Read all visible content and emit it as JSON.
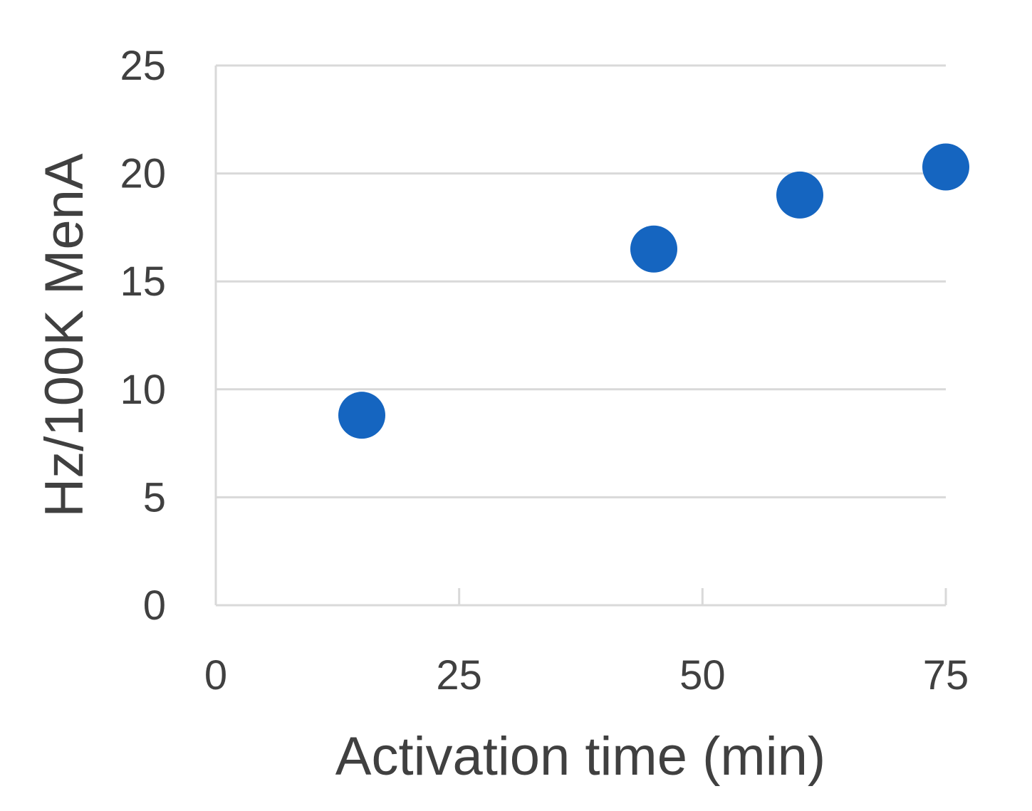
{
  "chart_data": {
    "type": "scatter",
    "title": "",
    "xlabel": "Activation time (min)",
    "ylabel": "Hz/100K MenA",
    "xlim": [
      0,
      75
    ],
    "ylim": [
      0,
      25
    ],
    "x_ticks": [
      0,
      25,
      50,
      75
    ],
    "y_ticks": [
      0,
      5,
      10,
      15,
      20,
      25
    ],
    "grid": "horizontal",
    "legend": "none",
    "series": [
      {
        "color": "#1565c0",
        "points": [
          {
            "x": 15,
            "y": 8.8
          },
          {
            "x": 45,
            "y": 16.5
          },
          {
            "x": 60,
            "y": 19.0
          },
          {
            "x": 75,
            "y": 20.3
          }
        ]
      }
    ]
  }
}
